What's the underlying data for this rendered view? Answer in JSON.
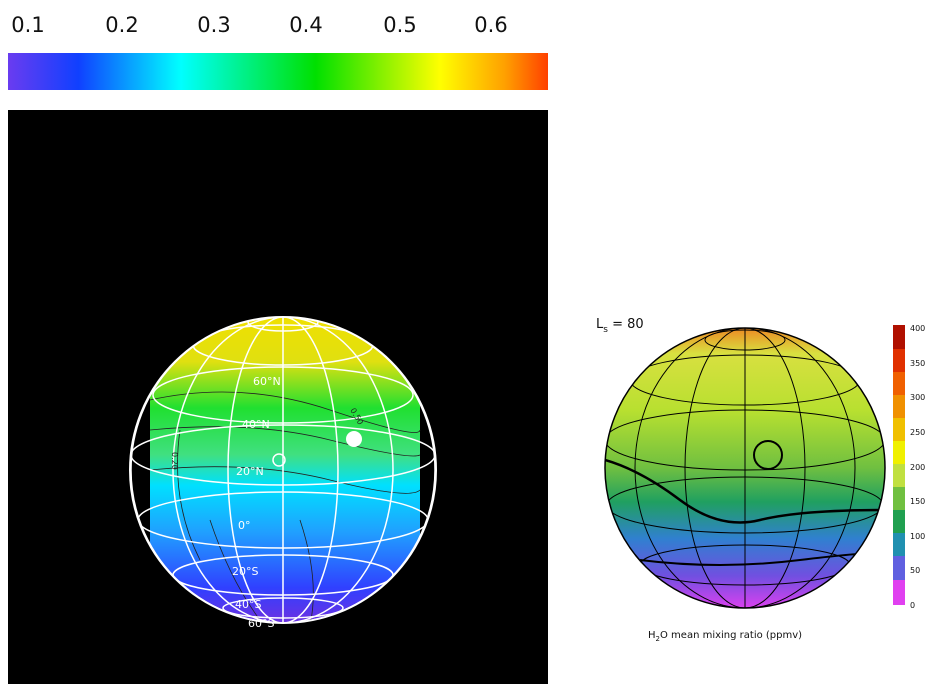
{
  "left_panel": {
    "colorbar_ticks": [
      "0.1",
      "0.2",
      "0.3",
      "0.4",
      "0.5",
      "0.6"
    ],
    "latitude_labels": [
      "60°N",
      "40°N",
      "20°N",
      "0°",
      "20°S",
      "40°S",
      "60°S"
    ],
    "contour_labels": [
      "0.50",
      "0.20"
    ]
  },
  "right_panel": {
    "title": {
      "symbol": "L",
      "subscript": "s",
      "value": " = 80"
    },
    "colorbar_ticks": [
      "400",
      "350",
      "300",
      "250",
      "200",
      "150",
      "100",
      "50",
      "0"
    ],
    "caption": {
      "prefix": "H",
      "subscript": "2",
      "suffix": "O mean mixing ratio (ppmv)"
    }
  }
}
